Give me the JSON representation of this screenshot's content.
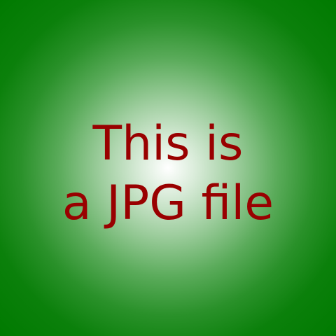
{
  "image": {
    "background": {
      "center_color": "#ffffff",
      "edge_color": "#007a00",
      "style": "radial-gradient"
    },
    "text_color": "#990000",
    "caption": {
      "line1": "This is",
      "line2": "a JPG file"
    }
  }
}
